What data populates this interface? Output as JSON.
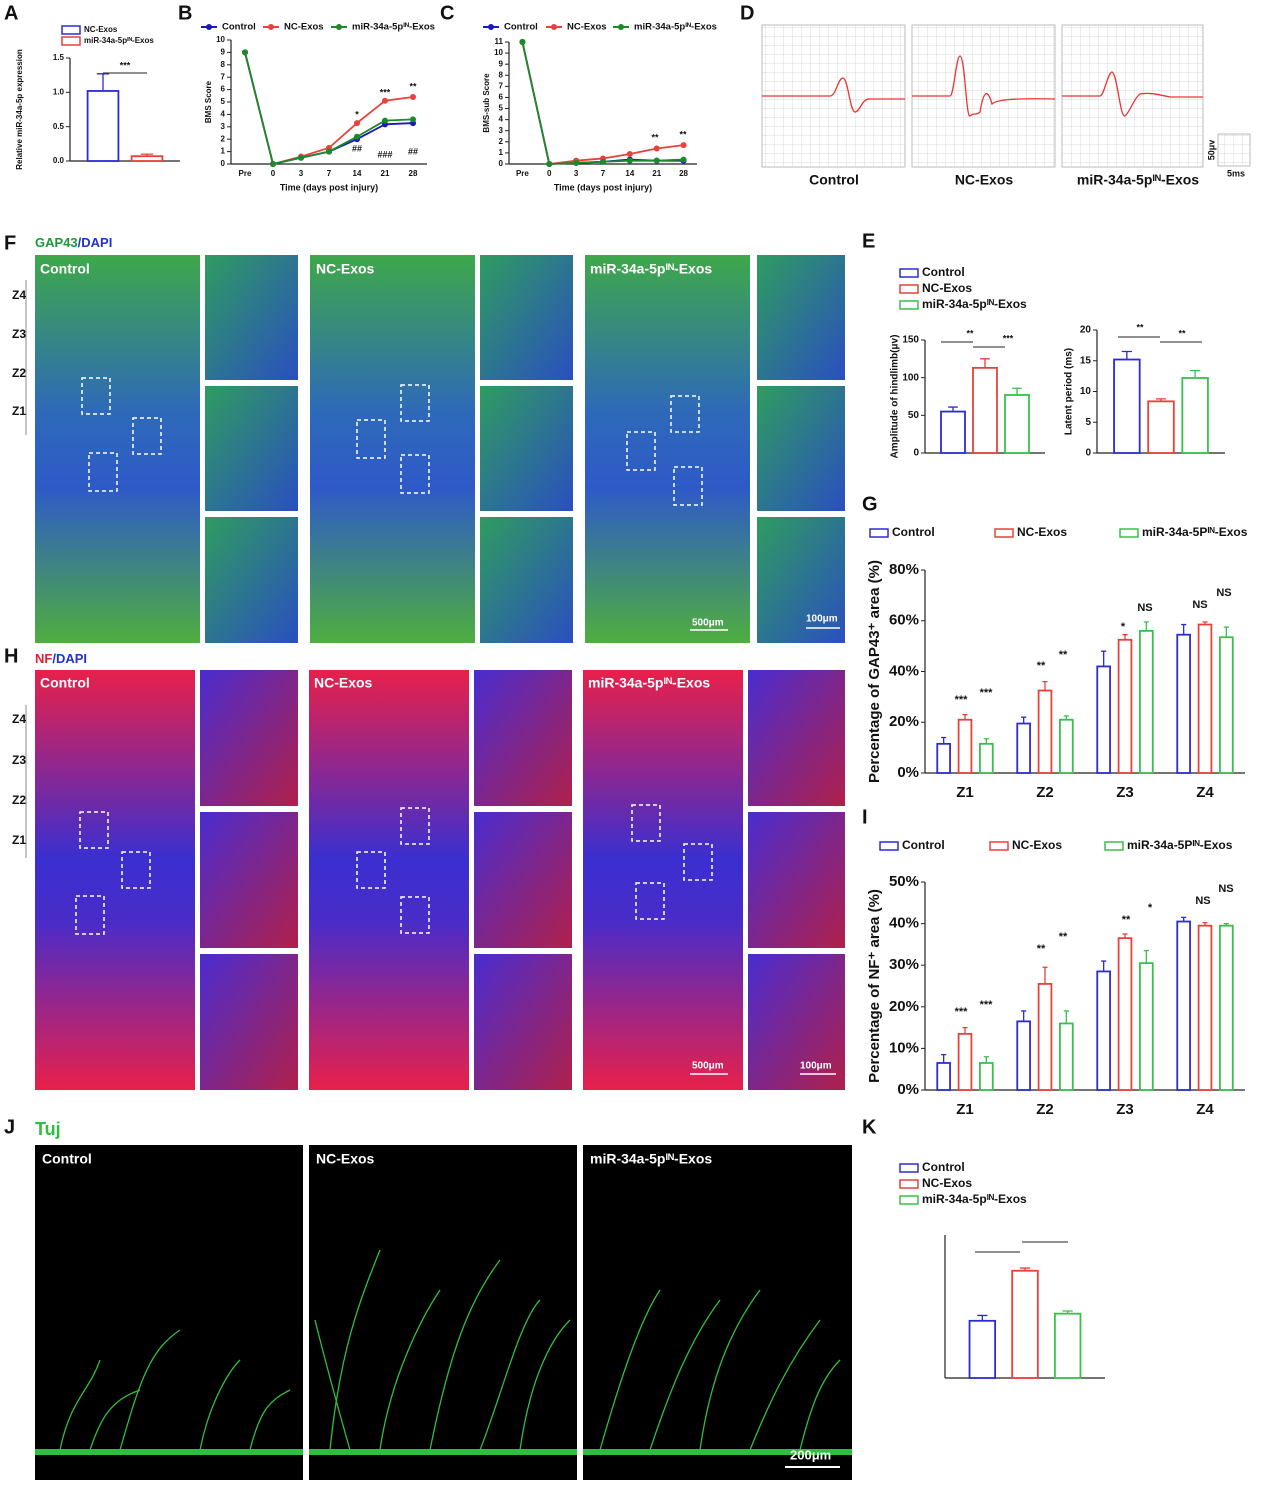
{
  "panels": {
    "letters": [
      "A",
      "B",
      "C",
      "D",
      "E",
      "F",
      "G",
      "H",
      "I",
      "J",
      "K"
    ]
  },
  "traces": {
    "labels": [
      "Control",
      "NC-Exos",
      "miR-34a-5pᴵᴺ-Exos"
    ],
    "scale_y": "50μv",
    "scale_x": "5ms"
  },
  "image_f": {
    "stain": [
      "GAP43",
      "/DAPI"
    ],
    "groups": [
      "Control",
      "NC-Exos",
      "miR-34a-5pᴵᴺ-Exos"
    ],
    "zones": [
      "Z4",
      "Z3",
      "Z2",
      "Z1"
    ],
    "scale_big": "500μm",
    "scale_small": "100μm"
  },
  "image_h": {
    "stain": [
      "NF",
      "/DAPI"
    ],
    "groups": [
      "Control",
      "NC-Exos",
      "miR-34a-5pᴵᴺ-Exos"
    ],
    "zones": [
      "Z4",
      "Z3",
      "Z2",
      "Z1"
    ],
    "scale_big": "500μm",
    "scale_small": "100μm"
  },
  "image_j": {
    "stain": "Tuj",
    "groups": [
      "Control",
      "NC-Exos",
      "miR-34a-5pᴵᴺ-Exos"
    ],
    "scale": "200μm"
  },
  "chart_data": [
    {
      "type": "bar",
      "y_label": "Relative miR-34a-5p expression",
      "categories": [
        null
      ],
      "series": [
        {
          "name": "NC-Exos",
          "color": "#2b2bd6",
          "values": [
            1.02
          ],
          "errors": [
            0.25
          ]
        },
        {
          "name": "miR-34a-5pᴵᴺ-Exos",
          "color": "#e8403a",
          "values": [
            0.07
          ],
          "errors": [
            0.03
          ]
        }
      ],
      "ylim": [
        0,
        1.5
      ],
      "yticks": [
        {
          "value": 0,
          "label": "0.0"
        },
        {
          "value": 0.5,
          "label": "0.5"
        },
        {
          "value": 1,
          "label": "1.0"
        },
        {
          "value": 1.5,
          "label": "1.5"
        }
      ],
      "annotations": [
        "***"
      ]
    },
    {
      "type": "line",
      "x_label": "Time (days post injury)",
      "y_label": "BMS Score",
      "categories": [
        "Pre",
        "0",
        "3",
        "7",
        "14",
        "21",
        "28"
      ],
      "series": [
        {
          "name": "Control",
          "color": "#1a1ab8",
          "values": [
            9,
            0,
            0.5,
            1.0,
            2.0,
            3.2,
            3.3
          ]
        },
        {
          "name": "NC-Exos",
          "color": "#e8403a",
          "values": [
            9,
            0,
            0.6,
            1.3,
            3.3,
            5.1,
            5.4
          ]
        },
        {
          "name": "miR-34a-5pᴵᴺ-Exos",
          "color": "#1a8a2a",
          "values": [
            9,
            0,
            0.5,
            1.0,
            2.2,
            3.5,
            3.6
          ]
        }
      ],
      "ylim": [
        0,
        10
      ],
      "yticks": [
        0,
        1,
        2,
        3,
        4,
        5,
        6,
        7,
        8,
        9,
        10
      ],
      "annotations": [
        "*",
        "***",
        "**",
        "##",
        "###",
        "##"
      ]
    },
    {
      "type": "line",
      "x_label": "Time (days post injury)",
      "y_label": "BMS-sub Score",
      "categories": [
        "Pre",
        "0",
        "3",
        "7",
        "14",
        "21",
        "28"
      ],
      "series": [
        {
          "name": "Control",
          "color": "#1a1ab8",
          "values": [
            11,
            0,
            0.1,
            0.2,
            0.4,
            0.3,
            0.3
          ]
        },
        {
          "name": "NC-Exos",
          "color": "#e8403a",
          "values": [
            11,
            0,
            0.3,
            0.5,
            0.9,
            1.4,
            1.7
          ]
        },
        {
          "name": "miR-34a-5pᴵᴺ-Exos",
          "color": "#1a8a2a",
          "values": [
            11,
            0,
            0.1,
            0.2,
            0.3,
            0.3,
            0.4
          ]
        }
      ],
      "ylim": [
        0,
        11
      ],
      "yticks": [
        0,
        1,
        2,
        3,
        4,
        5,
        6,
        7,
        8,
        9,
        10,
        11
      ],
      "annotations": [
        "**",
        "**"
      ]
    },
    {
      "type": "bar",
      "y_label": "Amplitude of hindlimb(μv)",
      "categories": [
        null
      ],
      "series": [
        {
          "name": "Control",
          "color": "#2b2bd6",
          "values": [
            55
          ],
          "errors": [
            6
          ]
        },
        {
          "name": "NC-Exos",
          "color": "#e8403a",
          "values": [
            113
          ],
          "errors": [
            12
          ]
        },
        {
          "name": "miR-34a-5pᴵᴺ-Exos",
          "color": "#36c24a",
          "values": [
            77
          ],
          "errors": [
            9
          ]
        }
      ],
      "ylim": [
        0,
        150
      ],
      "yticks": [
        0,
        50,
        100,
        150
      ],
      "annotations": [
        "**",
        "***"
      ]
    },
    {
      "type": "bar",
      "y_label": "Latent period (ms)",
      "categories": [
        null
      ],
      "series": [
        {
          "color": "#2b2bd6",
          "values": [
            15.2
          ],
          "errors": [
            1.3
          ]
        },
        {
          "color": "#e8403a",
          "values": [
            8.4
          ],
          "errors": [
            0.4
          ]
        },
        {
          "color": "#36c24a",
          "values": [
            12.2
          ],
          "errors": [
            1.2
          ]
        }
      ],
      "ylim": [
        0,
        20
      ],
      "yticks": [
        0,
        5,
        10,
        15,
        20
      ],
      "annotations": [
        "**",
        "**"
      ]
    },
    {
      "type": "bar",
      "y_label": "Percentage of GAP43⁺ area (%)",
      "categories": [
        "Z1",
        "Z2",
        "Z3",
        "Z4"
      ],
      "series": [
        {
          "name": "Control",
          "color": "#2b2bd6",
          "values": [
            11.5,
            19.5,
            42,
            54.5
          ],
          "errors": [
            2.5,
            2.5,
            6,
            4
          ]
        },
        {
          "name": "NC-Exos",
          "color": "#e8403a",
          "values": [
            21,
            32.5,
            52.5,
            58.5
          ],
          "errors": [
            2,
            3.5,
            2,
            1
          ]
        },
        {
          "name": "miR-34a-5Pᴵᴺ-Exos",
          "color": "#36c24a",
          "values": [
            11.5,
            21,
            56,
            53.5
          ],
          "errors": [
            2,
            1.5,
            3.5,
            4
          ]
        }
      ],
      "ylim": [
        0,
        80
      ],
      "yticks": [
        {
          "value": 0,
          "label": "0%"
        },
        {
          "value": 20,
          "label": "20%"
        },
        {
          "value": 40,
          "label": "40%"
        },
        {
          "value": 60,
          "label": "60%"
        },
        {
          "value": 80,
          "label": "80%"
        }
      ],
      "annotations": [
        "***",
        "***",
        "**",
        "**",
        "*",
        "NS",
        "NS",
        "NS"
      ]
    },
    {
      "type": "bar",
      "y_label": "Percentage of NF⁺ area (%)",
      "categories": [
        "Z1",
        "Z2",
        "Z3",
        "Z4"
      ],
      "series": [
        {
          "name": "Control",
          "color": "#2b2bd6",
          "values": [
            6.5,
            16.5,
            28.5,
            40.5
          ],
          "errors": [
            2,
            2.5,
            2.5,
            1
          ]
        },
        {
          "name": "NC-Exos",
          "color": "#e8403a",
          "values": [
            13.5,
            25.5,
            36.5,
            39.5
          ],
          "errors": [
            1.5,
            4,
            1,
            0.7
          ]
        },
        {
          "name": "miR-34a-5Pᴵᴺ-Exos",
          "color": "#36c24a",
          "values": [
            6.5,
            16,
            30.5,
            39.5
          ],
          "errors": [
            1.5,
            3,
            3,
            0.5
          ]
        }
      ],
      "ylim": [
        0,
        50
      ],
      "yticks": [
        {
          "value": 0,
          "label": "0%"
        },
        {
          "value": 10,
          "label": "10%"
        },
        {
          "value": 20,
          "label": "20%"
        },
        {
          "value": 30,
          "label": "30%"
        },
        {
          "value": 40,
          "label": "40%"
        },
        {
          "value": 50,
          "label": "50%"
        }
      ],
      "annotations": [
        "***",
        "***",
        "**",
        "**",
        "**",
        "*",
        "NS",
        "NS"
      ]
    },
    {
      "type": "bar",
      "categories": [
        null
      ],
      "series": [
        {
          "name": "Control",
          "color": "#2b2bd6",
          "values": [
            3.2
          ],
          "errors": [
            0.3
          ]
        },
        {
          "name": "NC-Exos",
          "color": "#e8403a",
          "values": [
            6.0
          ],
          "errors": [
            0.15
          ]
        },
        {
          "name": "miR-34a-5pᴵᴺ-Exos",
          "color": "#36c24a",
          "values": [
            3.6
          ],
          "errors": [
            0.15
          ]
        }
      ],
      "ylim": [
        0,
        8
      ]
    }
  ]
}
